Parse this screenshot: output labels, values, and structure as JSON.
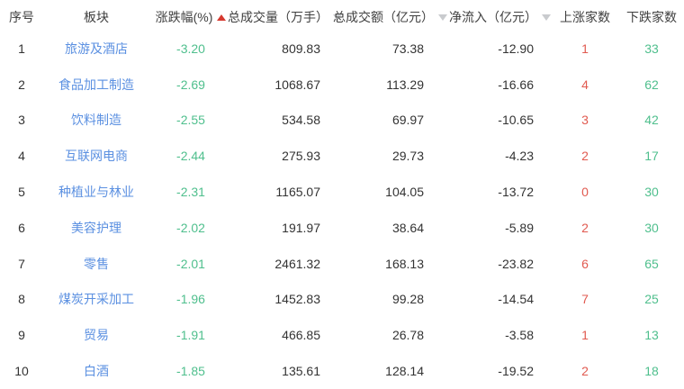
{
  "table": {
    "headers": {
      "index": "序号",
      "sector": "板块",
      "change": "涨跌幅(%)",
      "volume": "总成交量（万手）",
      "turnover": "总成交额（亿元）",
      "net_inflow": "净流入（亿元）",
      "gainers": "上涨家数",
      "losers": "下跌家数"
    },
    "sort": {
      "active_column": "涨跌幅(%)",
      "direction": "ascending"
    },
    "rows": [
      {
        "num": "1",
        "sector": "旅游及酒店",
        "change": "-3.20",
        "volume": "809.83",
        "turnover": "73.38",
        "net": "-12.90",
        "up": "1",
        "down": "33"
      },
      {
        "num": "2",
        "sector": "食品加工制造",
        "change": "-2.69",
        "volume": "1068.67",
        "turnover": "113.29",
        "net": "-16.66",
        "up": "4",
        "down": "62"
      },
      {
        "num": "3",
        "sector": "饮料制造",
        "change": "-2.55",
        "volume": "534.58",
        "turnover": "69.97",
        "net": "-10.65",
        "up": "3",
        "down": "42"
      },
      {
        "num": "4",
        "sector": "互联网电商",
        "change": "-2.44",
        "volume": "275.93",
        "turnover": "29.73",
        "net": "-4.23",
        "up": "2",
        "down": "17"
      },
      {
        "num": "5",
        "sector": "种植业与林业",
        "change": "-2.31",
        "volume": "1165.07",
        "turnover": "104.05",
        "net": "-13.72",
        "up": "0",
        "down": "30"
      },
      {
        "num": "6",
        "sector": "美容护理",
        "change": "-2.02",
        "volume": "191.97",
        "turnover": "38.64",
        "net": "-5.89",
        "up": "2",
        "down": "30"
      },
      {
        "num": "7",
        "sector": "零售",
        "change": "-2.01",
        "volume": "2461.32",
        "turnover": "168.13",
        "net": "-23.82",
        "up": "6",
        "down": "65"
      },
      {
        "num": "8",
        "sector": "煤炭开采加工",
        "change": "-1.96",
        "volume": "1452.83",
        "turnover": "99.28",
        "net": "-14.54",
        "up": "7",
        "down": "25"
      },
      {
        "num": "9",
        "sector": "贸易",
        "change": "-1.91",
        "volume": "466.85",
        "turnover": "26.78",
        "net": "-3.58",
        "up": "1",
        "down": "13"
      },
      {
        "num": "10",
        "sector": "白酒",
        "change": "-1.85",
        "volume": "135.61",
        "turnover": "128.14",
        "net": "-19.52",
        "up": "2",
        "down": "18"
      }
    ]
  },
  "colors": {
    "link_blue": "#5b90e1",
    "down_green": "#4fbf8d",
    "up_red": "#e15a50",
    "sort_active_red": "#d6392f",
    "sort_inactive_gray": "#c9cbce",
    "text": "#333333"
  }
}
